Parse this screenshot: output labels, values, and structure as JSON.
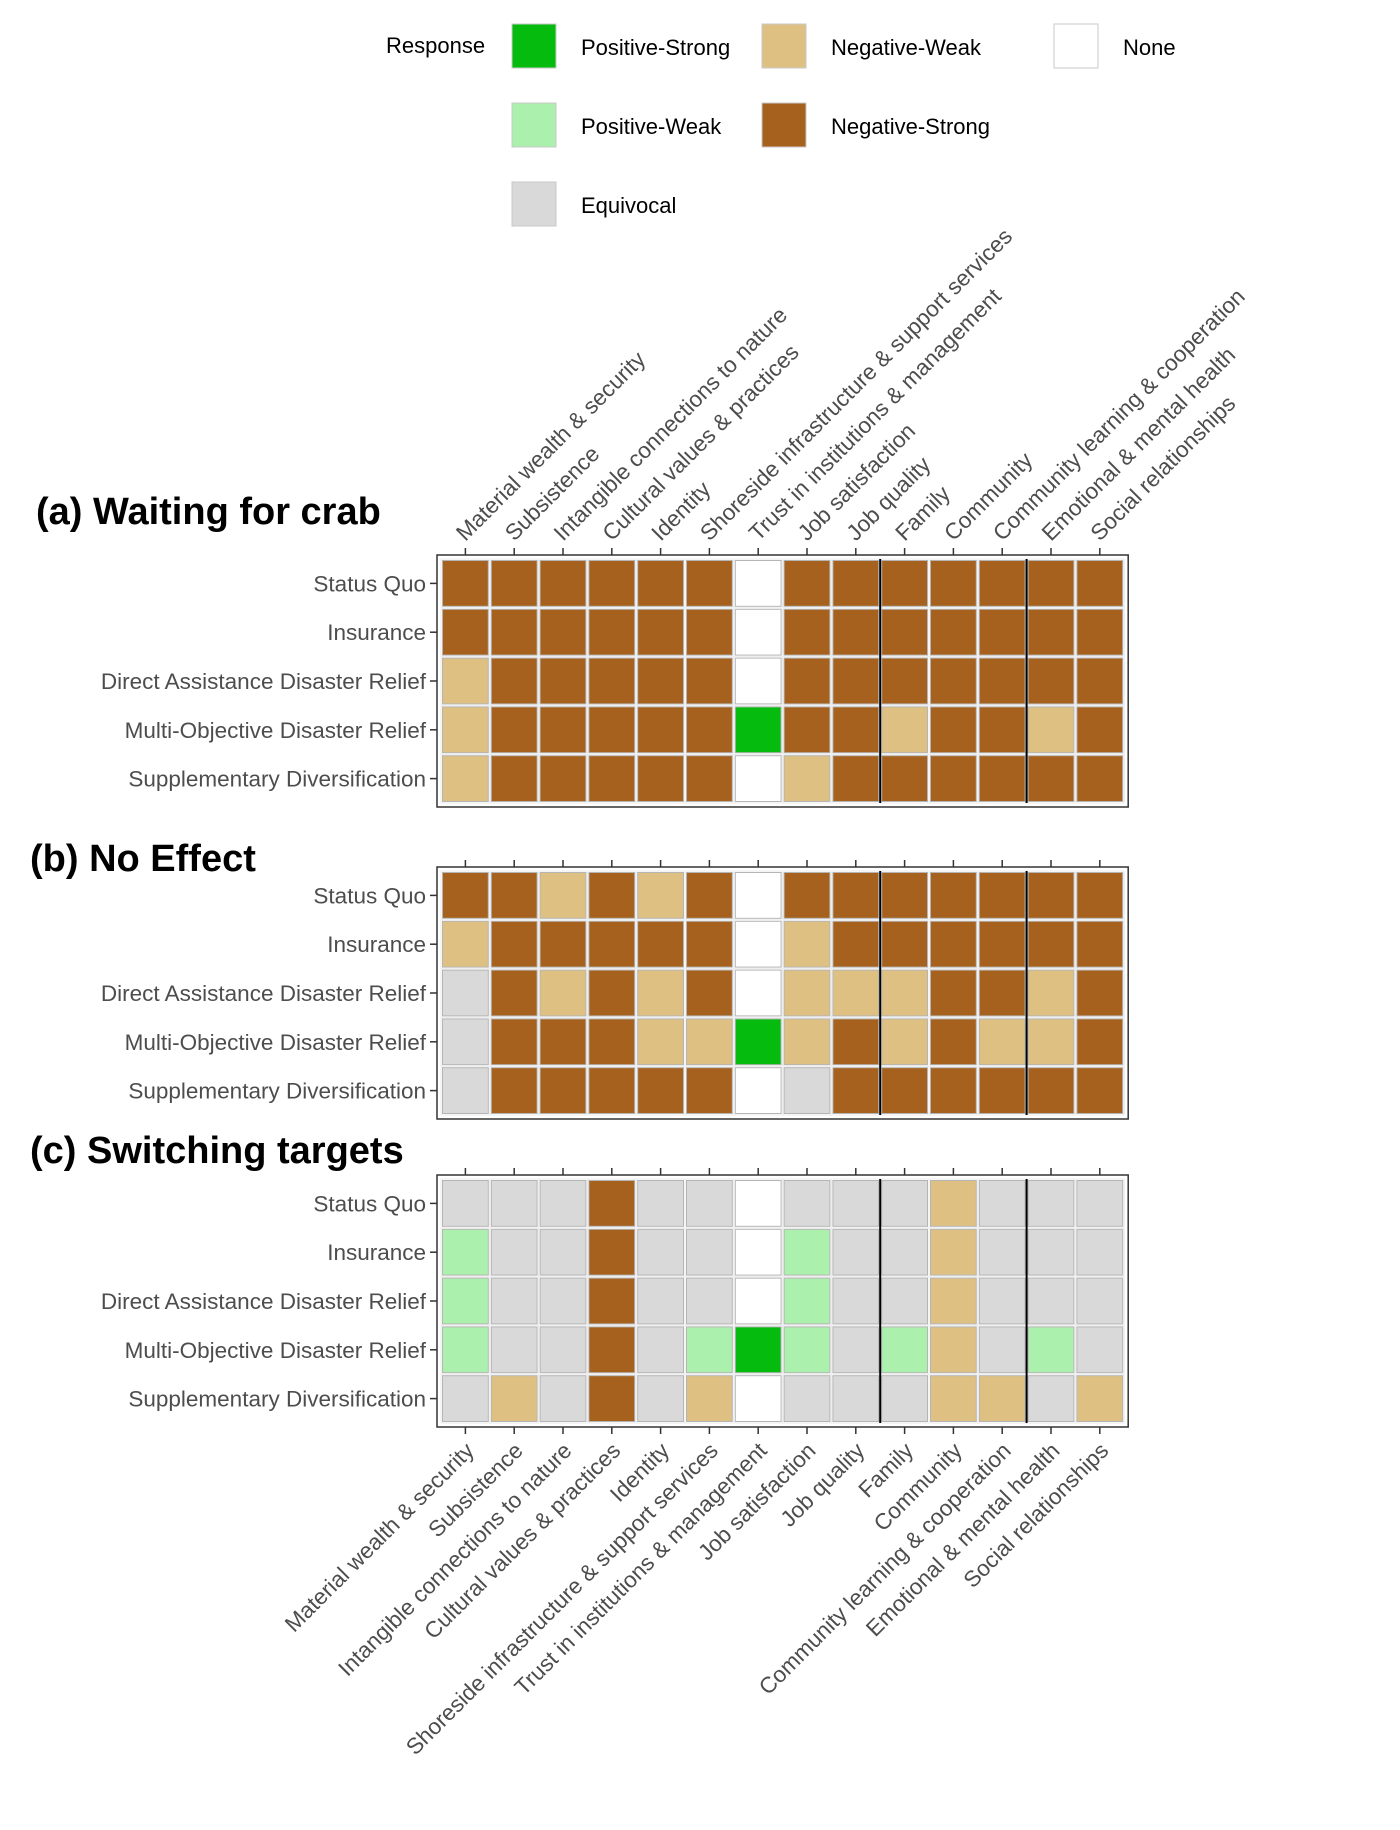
{
  "chart_data": {
    "type": "heatmap",
    "legend": {
      "title": "Response",
      "items": [
        {
          "key": "PS",
          "label": "Positive-Strong",
          "color": "#05bb0e"
        },
        {
          "key": "PW",
          "label": "Positive-Weak",
          "color": "#acf0ae"
        },
        {
          "key": "EQ",
          "label": "Equivocal",
          "color": "#d9d9d9"
        },
        {
          "key": "NW",
          "label": "Negative-Weak",
          "color": "#dec182"
        },
        {
          "key": "NS",
          "label": "Negative-Strong",
          "color": "#a6611f"
        },
        {
          "key": "NO",
          "label": "None",
          "color": "#ffffff"
        }
      ]
    },
    "columns": [
      "Material wealth & security",
      "Subsistence",
      "Intangible connections to nature",
      "Cultural values & practices",
      "Identity",
      "Shoreside infrastructure & support services",
      "Trust in institutions & management",
      "Job satisfaction",
      "Job quality",
      "Family",
      "Community",
      "Community learning & cooperation",
      "Emotional & mental health",
      "Social relationships"
    ],
    "rows": [
      "Status Quo",
      "Insurance",
      "Direct Assistance Disaster Relief",
      "Multi-Objective Disaster Relief",
      "Supplementary Diversification"
    ],
    "panels": [
      {
        "title": "(a) Waiting for crab",
        "cells": [
          [
            "NS",
            "NS",
            "NS",
            "NS",
            "NS",
            "NS",
            "NO",
            "NS",
            "NS",
            "NS",
            "NS",
            "NS",
            "NS",
            "NS"
          ],
          [
            "NS",
            "NS",
            "NS",
            "NS",
            "NS",
            "NS",
            "NO",
            "NS",
            "NS",
            "NS",
            "NS",
            "NS",
            "NS",
            "NS"
          ],
          [
            "NW",
            "NS",
            "NS",
            "NS",
            "NS",
            "NS",
            "NO",
            "NS",
            "NS",
            "NS",
            "NS",
            "NS",
            "NS",
            "NS"
          ],
          [
            "NW",
            "NS",
            "NS",
            "NS",
            "NS",
            "NS",
            "PS",
            "NS",
            "NS",
            "NW",
            "NS",
            "NS",
            "NW",
            "NS"
          ],
          [
            "NW",
            "NS",
            "NS",
            "NS",
            "NS",
            "NS",
            "NO",
            "NW",
            "NS",
            "NS",
            "NS",
            "NS",
            "NS",
            "NS"
          ]
        ]
      },
      {
        "title": "(b) No Effect",
        "cells": [
          [
            "NS",
            "NS",
            "NW",
            "NS",
            "NW",
            "NS",
            "NO",
            "NS",
            "NS",
            "NS",
            "NS",
            "NS",
            "NS",
            "NS"
          ],
          [
            "NW",
            "NS",
            "NS",
            "NS",
            "NS",
            "NS",
            "NO",
            "NW",
            "NS",
            "NS",
            "NS",
            "NS",
            "NS",
            "NS"
          ],
          [
            "EQ",
            "NS",
            "NW",
            "NS",
            "NW",
            "NS",
            "NO",
            "NW",
            "NW",
            "NW",
            "NS",
            "NS",
            "NW",
            "NS"
          ],
          [
            "EQ",
            "NS",
            "NS",
            "NS",
            "NW",
            "NW",
            "PS",
            "NW",
            "NS",
            "NW",
            "NS",
            "NW",
            "NW",
            "NS"
          ],
          [
            "EQ",
            "NS",
            "NS",
            "NS",
            "NS",
            "NS",
            "NO",
            "EQ",
            "NS",
            "NS",
            "NS",
            "NS",
            "NS",
            "NS"
          ]
        ]
      },
      {
        "title": "(c) Switching targets",
        "cells": [
          [
            "EQ",
            "EQ",
            "EQ",
            "NS",
            "EQ",
            "EQ",
            "NO",
            "EQ",
            "EQ",
            "EQ",
            "NW",
            "EQ",
            "EQ",
            "EQ"
          ],
          [
            "PW",
            "EQ",
            "EQ",
            "NS",
            "EQ",
            "EQ",
            "NO",
            "PW",
            "EQ",
            "EQ",
            "NW",
            "EQ",
            "EQ",
            "EQ"
          ],
          [
            "PW",
            "EQ",
            "EQ",
            "NS",
            "EQ",
            "EQ",
            "NO",
            "PW",
            "EQ",
            "EQ",
            "NW",
            "EQ",
            "EQ",
            "EQ"
          ],
          [
            "PW",
            "EQ",
            "EQ",
            "NS",
            "EQ",
            "PW",
            "PS",
            "PW",
            "EQ",
            "PW",
            "NW",
            "EQ",
            "PW",
            "EQ"
          ],
          [
            "EQ",
            "NW",
            "EQ",
            "NS",
            "EQ",
            "NW",
            "NO",
            "EQ",
            "EQ",
            "EQ",
            "NW",
            "NW",
            "EQ",
            "NW"
          ]
        ]
      }
    ],
    "separators_after_column": [
      9,
      12
    ]
  }
}
